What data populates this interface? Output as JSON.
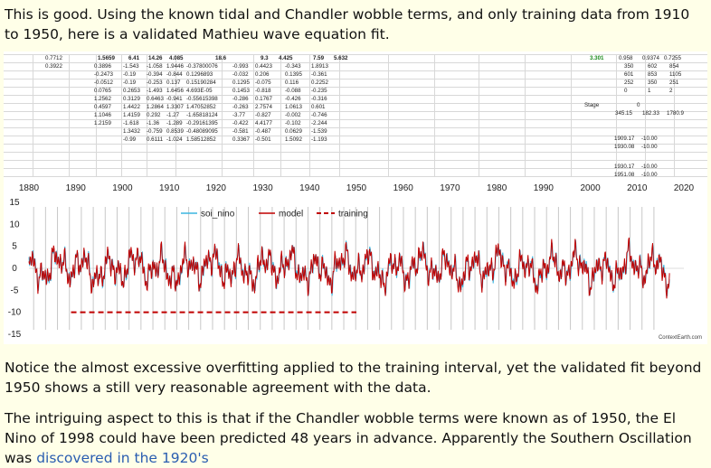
{
  "text": {
    "p1": "This is good. Using the known tidal and Chandler wobble terms, and only training data from 1910 to 1950, here is a validated Mathieu wave equation fit.",
    "p2": "Notice the almost excessive overfitting applied to the training interval, yet the validated fit beyond 1950 shows a still very reasonable agreement with the data.",
    "p3_before_link": "The intriguing aspect to this is that if the Chandler wobble terms were known as of 1950, the El Nino of 1998 could have been predicted 48 years in advance. Apparently the Southern Oscillation was ",
    "p3_link": "discovered in the 1920's"
  },
  "spreadsheet": {
    "left_col": [
      "0.7712",
      "0.3922"
    ],
    "header_row": [
      "1.5659",
      "6.41",
      "14.26",
      "4.085",
      "18.6",
      "9.3",
      "4.425",
      "7.59",
      "5.632"
    ],
    "rows": [
      [
        "0.3896",
        "-1.543",
        "-1.058",
        "1.9446",
        "-0.37800076",
        "-0.993",
        "0.4423",
        "-0.343",
        "1.8913"
      ],
      [
        "-0.2473",
        "-0.19",
        "-0.394",
        "-0.844",
        "0.1296893",
        "-0.032",
        "0.206",
        "0.1395",
        "-0.361"
      ],
      [
        "-0.0512",
        "-0.19",
        "-0.253",
        "0.137",
        "0.15190284",
        "0.1295",
        "-0.075",
        "0.116",
        "0.2252"
      ],
      [
        "0.0765",
        "0.2653",
        "-1.493",
        "1.6456",
        "4.693E-05",
        "0.1453",
        "-0.818",
        "-0.088",
        "-0.235"
      ],
      [
        "1.2562",
        "0.3129",
        "0.6463",
        "-0.941",
        "-0.55615398",
        "-0.286",
        "0.1767",
        "-0.426",
        "-0.316"
      ],
      [
        "0.4597",
        "1.4422",
        "1.2864",
        "1.3307",
        "1.47052852",
        "-0.263",
        "2.7574",
        "1.0613",
        "0.601"
      ],
      [
        "1.1046",
        "1.4159",
        "0.292",
        "-1.27",
        "-1.65818124",
        "-3.77",
        "-0.827",
        "-0.002",
        "-0.746"
      ],
      [
        "1.2159",
        "-1.618",
        "-1.36",
        "-1.289",
        "-0.29161395",
        "-0.422",
        "4.4177",
        "-0.102",
        "-2.244"
      ],
      [
        "",
        "1.3432",
        "-0.759",
        "0.8539",
        "-0.48089095",
        "-0.581",
        "-0.487",
        "0.0629",
        "-1.539"
      ],
      [
        "",
        "-0.99",
        "0.6111",
        "-1.024",
        "1.58512852",
        "0.3367",
        "-0.501",
        "1.5092",
        "-1.193"
      ]
    ],
    "right_top": {
      "value": "3.301",
      "color": "#1a8a1a"
    },
    "right_block": [
      [
        "0.958",
        "0.9374",
        "0.7255"
      ],
      [
        "350",
        "602",
        "854"
      ],
      [
        "601",
        "853",
        "1105"
      ],
      [
        "252",
        "350",
        "251"
      ],
      [
        "0",
        "1",
        "2"
      ]
    ],
    "stage_label": "Stage",
    "stage_rows": [
      [
        "0",
        "",
        ""
      ],
      [
        "345.15",
        "182.33",
        "1780.9"
      ]
    ],
    "lower_pairs": [
      [
        "1909.17",
        "-10.00"
      ],
      [
        "1930.08",
        "-10.00"
      ],
      [
        "1930.17",
        "-10.00"
      ],
      [
        "1951.08",
        "-10.00"
      ]
    ]
  },
  "chart_data": {
    "type": "line",
    "x_ticks": [
      "1880",
      "1890",
      "1900",
      "1910",
      "1920",
      "1930",
      "1940",
      "1950",
      "1960",
      "1970",
      "1980",
      "1990",
      "2000",
      "2010",
      "2020"
    ],
    "y_ticks": [
      "15",
      "10",
      "5",
      "0",
      "-5",
      "-10",
      "-15"
    ],
    "xlim": [
      1880,
      2020
    ],
    "ylim": [
      -15,
      15
    ],
    "series": [
      {
        "name": "soi_nino",
        "color": "#3bb6e0"
      },
      {
        "name": "model",
        "color": "#c00000"
      },
      {
        "name": "training",
        "color": "#c00000",
        "dashed": true,
        "x": [
          1889,
          1950
        ],
        "y": [
          -10,
          -10
        ]
      }
    ],
    "credit": "ContextEarth.com"
  }
}
